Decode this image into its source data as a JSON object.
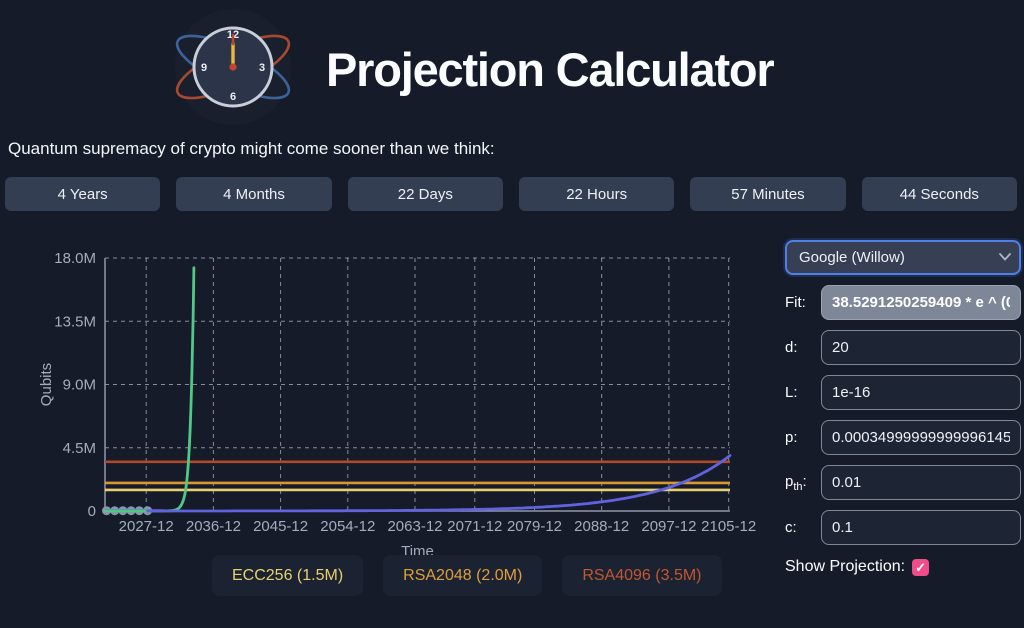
{
  "header": {
    "title": "Projection Calculator",
    "logo_numerals": [
      "12",
      "3",
      "6",
      "9"
    ]
  },
  "subtitle": "Quantum supremacy of crypto might come sooner than we think:",
  "countdown": {
    "items": [
      {
        "label": "4 Years"
      },
      {
        "label": "4 Months"
      },
      {
        "label": "22 Days"
      },
      {
        "label": "22 Hours"
      },
      {
        "label": "57 Minutes"
      },
      {
        "label": "44 Seconds"
      }
    ]
  },
  "chart_data": {
    "type": "line",
    "xlabel": "Time",
    "ylabel": "Qubits",
    "x_domain_years": [
      2022.4,
      2106.1
    ],
    "y_domain_qubits_millions": [
      0,
      18
    ],
    "grid": {
      "dashed": true,
      "legend_position": "bottom"
    },
    "x_ticks": [
      {
        "year": 2027.92,
        "label": "2027-12"
      },
      {
        "year": 2036.92,
        "label": "2036-12"
      },
      {
        "year": 2045.92,
        "label": "2045-12"
      },
      {
        "year": 2054.92,
        "label": "2054-12"
      },
      {
        "year": 2063.92,
        "label": "2063-12"
      },
      {
        "year": 2071.92,
        "label": "2071-12"
      },
      {
        "year": 2079.92,
        "label": "2079-12"
      },
      {
        "year": 2088.92,
        "label": "2088-12"
      },
      {
        "year": 2097.92,
        "label": "2097-12"
      },
      {
        "year": 2105.92,
        "label": "2105-12"
      }
    ],
    "y_ticks": [
      {
        "value_millions": 0,
        "label": "0"
      },
      {
        "value_millions": 4.5,
        "label": "4.5M"
      },
      {
        "value_millions": 9.0,
        "label": "9.0M"
      },
      {
        "value_millions": 13.5,
        "label": "13.5M"
      },
      {
        "value_millions": 18.0,
        "label": "18.0M"
      }
    ],
    "thresholds": [
      {
        "name": "ECC256",
        "legend_label": "ECC256 (1.5M)",
        "qubits_millions": 1.5,
        "line_color": "#e7cf6d",
        "legend_text_color": "#e8d06e"
      },
      {
        "name": "RSA2048",
        "legend_label": "RSA2048 (2.0M)",
        "qubits_millions": 2.0,
        "line_color": "#d9982f",
        "legend_text_color": "#e09e3c"
      },
      {
        "name": "RSA4096",
        "legend_label": "RSA4096 (3.5M)",
        "qubits_millions": 3.5,
        "line_color": "#b04a28",
        "legend_text_color": "#c1572f"
      }
    ],
    "series": [
      {
        "name": "measured-qubit-counts",
        "kind": "points-line",
        "qubits_millions": 0.02,
        "years": [
          2022.6,
          2023.7,
          2024.8,
          2025.9,
          2027.0,
          2028.1
        ],
        "line_from_year": 2022.5,
        "line_to_year": 2030.2,
        "point_color": "#8b95a9",
        "line_color": "#5560e0"
      },
      {
        "name": "exponential-fit",
        "kind": "exponential",
        "color": "#53c786",
        "anchor_year": 2034.3,
        "anchor_qubits_millions": 17.3,
        "rate_per_year": 2.2,
        "draw_from_year": 2022.4,
        "draw_to_year": 2034.3
      },
      {
        "name": "projection",
        "kind": "exponential",
        "color": "#5f63de",
        "anchor_year": 2106.1,
        "anchor_qubits_millions": 3.95,
        "rate_per_year": 0.105,
        "draw_from_year": 2028.1,
        "draw_to_year": 2106.1
      }
    ]
  },
  "controls": {
    "computer_select": {
      "value": "Google (Willow)"
    },
    "fit": {
      "label": "Fit:",
      "value": "38.5291250259409 * e ^ (0"
    },
    "d": {
      "label": "d:",
      "value": "20"
    },
    "L": {
      "label": "L:",
      "value": "1e-16"
    },
    "p": {
      "label": "p:",
      "value": "0.00034999999999996145"
    },
    "pth": {
      "label_base": "p",
      "label_sub": "th",
      "label_suffix": ":",
      "value": "0.01"
    },
    "c": {
      "label": "c:",
      "value": "0.1"
    },
    "show_projection": {
      "label": "Show Projection:",
      "checked": true
    }
  },
  "colors": {
    "background": "#151b29",
    "tile": "#333e52",
    "select_focus_border": "#4e80e8",
    "checkbox": "#ee4d88",
    "fit_curve": "#53c786",
    "projection_curve": "#5f63de"
  }
}
